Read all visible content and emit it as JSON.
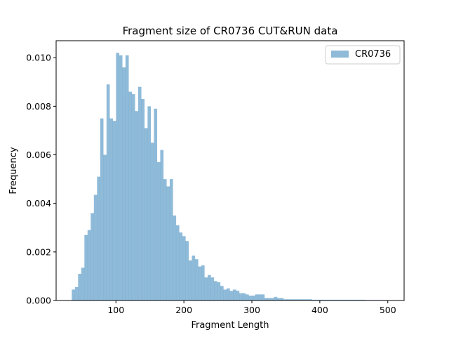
{
  "chart_data": {
    "type": "bar",
    "title": "Fragment size of CR0736 CUT&RUN data",
    "xlabel": "Fragment Length",
    "ylabel": "Frequency",
    "xlim": [
      12,
      524
    ],
    "ylim": [
      0,
      0.0107
    ],
    "x_ticks": [
      100,
      200,
      300,
      400,
      500
    ],
    "x_tick_labels": [
      "100",
      "200",
      "300",
      "400",
      "500"
    ],
    "y_ticks": [
      0,
      0.002,
      0.004,
      0.006,
      0.008,
      0.01
    ],
    "y_tick_labels": [
      "0.000",
      "0.002",
      "0.004",
      "0.006",
      "0.008",
      "0.010"
    ],
    "grid": false,
    "legend_position": "top-right",
    "bin_start": 35,
    "bin_width": 4.65,
    "series": [
      {
        "name": "CR0736",
        "color": "#1f77b4",
        "alpha": 0.5,
        "values": [
          0.00045,
          0.00055,
          0.0011,
          0.00135,
          0.0027,
          0.0029,
          0.0036,
          0.00435,
          0.0051,
          0.0075,
          0.006,
          0.0089,
          0.0075,
          0.0074,
          0.0102,
          0.0101,
          0.0096,
          0.0101,
          0.0086,
          0.0085,
          0.0078,
          0.0088,
          0.0083,
          0.0071,
          0.008,
          0.0065,
          0.0079,
          0.0057,
          0.0062,
          0.005,
          0.0047,
          0.005,
          0.0035,
          0.0031,
          0.0028,
          0.00265,
          0.00245,
          0.00165,
          0.00185,
          0.0017,
          0.0014,
          0.00145,
          0.00095,
          0.00105,
          0.00095,
          0.0008,
          0.00075,
          0.0006,
          0.00045,
          0.0005,
          0.0004,
          0.00045,
          0.0004,
          0.0003,
          0.0003,
          0.00025,
          0.0002,
          0.0002,
          0.00025,
          0.00025,
          0.00025,
          0.0001,
          0.0001,
          0.0001,
          0.00015,
          0.0001,
          0.0001,
          5e-05,
          5e-05,
          5e-05,
          5e-05,
          5e-05,
          5e-05,
          5e-05,
          5e-05,
          5e-05,
          3e-05,
          3e-05,
          3e-05,
          3e-05,
          3e-05,
          3e-05,
          3e-05,
          3e-05,
          3e-05,
          3e-05,
          3e-05,
          3e-05,
          3e-05,
          3e-05,
          3e-05,
          3e-05,
          3e-05,
          2e-05,
          2e-05,
          2e-05,
          2e-05,
          2e-05,
          2e-05,
          2e-05
        ]
      }
    ]
  }
}
